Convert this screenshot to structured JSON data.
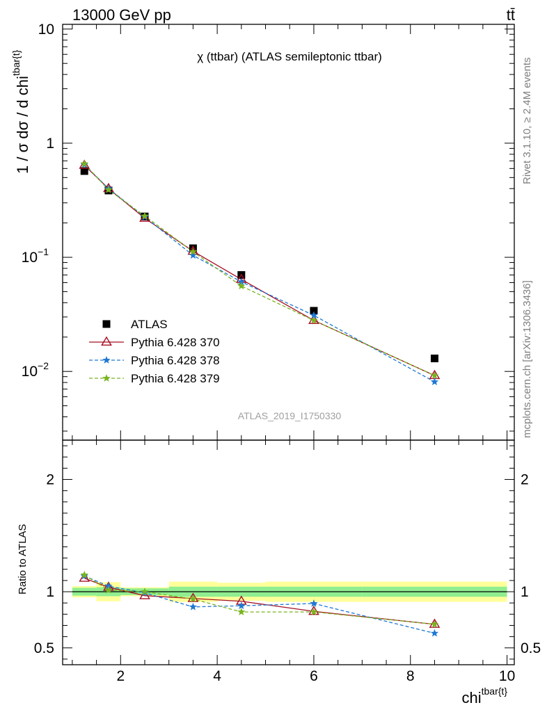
{
  "header": {
    "left_label": "13000 GeV pp",
    "right_label": "tt̄"
  },
  "side_labels": {
    "rivet": "Rivet 3.1.10, ≥ 2.4M events",
    "mcplots": "mcplots.cern.ch [arXiv:1306.3436]"
  },
  "watermark": "ATLAS_2019_I1750330",
  "chart_data": [
    {
      "type": "scatter",
      "panel": "main",
      "title": "χ (ttbar) (ATLAS semileptonic ttbar)",
      "ylabel_main": "1 / σ dσ / d chi",
      "ylabel_sup": "tbar{t}",
      "yscale": "log",
      "ylim": [
        0.0025,
        11
      ],
      "xlim": [
        0.8,
        10.15
      ],
      "y_ticks": [
        {
          "value": 10,
          "base": "10",
          "exp": ""
        },
        {
          "value": 1,
          "base": "1",
          "exp": ""
        },
        {
          "value": 0.1,
          "base": "10",
          "exp": "−1"
        },
        {
          "value": 0.01,
          "base": "10",
          "exp": "−2"
        }
      ],
      "legend_placement": "bottom-left",
      "series": [
        {
          "name": "ATLAS",
          "color": "#000000",
          "marker": "square",
          "line": "none",
          "x": [
            1.25,
            1.75,
            2.5,
            3.5,
            4.5,
            6.0,
            8.5
          ],
          "y": [
            0.57,
            0.385,
            0.228,
            0.12,
            0.07,
            0.034,
            0.013
          ]
        },
        {
          "name": "Pythia 6.428 370",
          "color": "#a50f23",
          "marker": "triangle-open",
          "line": "solid",
          "x": [
            1.25,
            1.75,
            2.5,
            3.5,
            4.5,
            6.0,
            8.5
          ],
          "y": [
            0.64,
            0.4,
            0.22,
            0.113,
            0.064,
            0.028,
            0.0092
          ]
        },
        {
          "name": "Pythia 6.428 378",
          "color": "#1e78d2",
          "marker": "star",
          "line": "dashed",
          "x": [
            1.25,
            1.75,
            2.5,
            3.5,
            4.5,
            6.0,
            8.5
          ],
          "y": [
            0.65,
            0.4,
            0.226,
            0.104,
            0.061,
            0.031,
            0.0081
          ]
        },
        {
          "name": "Pythia 6.428 379",
          "color": "#78b41e",
          "marker": "star",
          "line": "dashed",
          "x": [
            1.25,
            1.75,
            2.5,
            3.5,
            4.5,
            6.0,
            8.5
          ],
          "y": [
            0.66,
            0.39,
            0.23,
            0.112,
            0.056,
            0.028,
            0.0092
          ]
        }
      ]
    },
    {
      "type": "line",
      "panel": "ratio",
      "ylabel": "Ratio to ATLAS",
      "xlabel_main": "chi",
      "xlabel_sup": "tbar{t}",
      "ylim": [
        0.35,
        2.35
      ],
      "xlim": [
        0.8,
        10.15
      ],
      "y_ticks": [
        0.5,
        1,
        2
      ],
      "x_ticks": [
        2,
        4,
        6,
        8,
        10
      ],
      "uncertainty_bands": {
        "bins": [
          [
            1.0,
            1.5
          ],
          [
            1.5,
            2.0
          ],
          [
            2.0,
            3.0
          ],
          [
            3.0,
            4.0
          ],
          [
            4.0,
            5.0
          ],
          [
            5.0,
            7.0
          ],
          [
            7.0,
            10.0
          ]
        ],
        "stat_half_width": [
          0.035,
          0.04,
          0.03,
          0.045,
          0.045,
          0.045,
          0.045
        ],
        "total_half_width": [
          0.05,
          0.085,
          0.04,
          0.09,
          0.08,
          0.09,
          0.09
        ],
        "stat_color": "#90ee90",
        "total_color": "#ffff99"
      },
      "series": [
        {
          "name": "Pythia 6.428 370",
          "color": "#a50f23",
          "marker": "triangle-open",
          "line": "solid",
          "x": [
            1.25,
            1.75,
            2.5,
            3.5,
            4.5,
            6.0,
            8.5
          ],
          "y": [
            1.12,
            1.04,
            0.965,
            0.94,
            0.915,
            0.825,
            0.71
          ]
        },
        {
          "name": "Pythia 6.428 378",
          "color": "#1e78d2",
          "marker": "star",
          "line": "dashed",
          "x": [
            1.25,
            1.75,
            2.5,
            3.5,
            4.5,
            6.0,
            8.5
          ],
          "y": [
            1.14,
            1.05,
            0.99,
            0.865,
            0.875,
            0.895,
            0.63
          ]
        },
        {
          "name": "Pythia 6.428 379",
          "color": "#78b41e",
          "marker": "star",
          "line": "dashed",
          "x": [
            1.25,
            1.75,
            2.5,
            3.5,
            4.5,
            6.0,
            8.5
          ],
          "y": [
            1.15,
            1.015,
            1.0,
            0.935,
            0.82,
            0.82,
            0.71
          ]
        }
      ]
    }
  ]
}
